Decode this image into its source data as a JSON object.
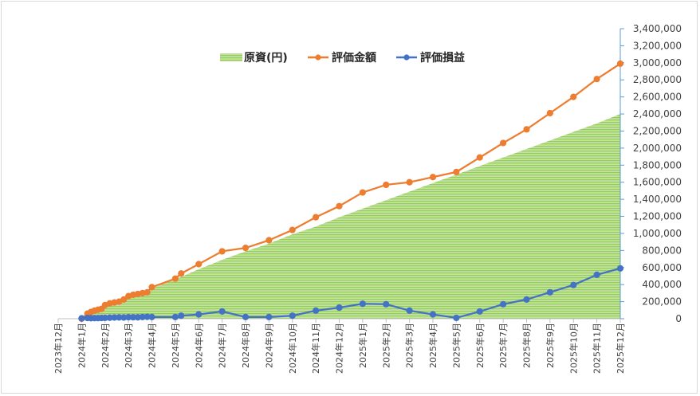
{
  "chart_data": {
    "type": "line+area",
    "title": "",
    "xlabel": "",
    "ylabel": "",
    "ylim": [
      0,
      3400000
    ],
    "ytick_step": 200000,
    "grid": false,
    "legend_position": "top-center",
    "y_ticks": [
      "0",
      "200,000",
      "400,000",
      "600,000",
      "800,000",
      "1,000,000",
      "1,200,000",
      "1,400,000",
      "1,600,000",
      "1,800,000",
      "2,000,000",
      "2,200,000",
      "2,400,000",
      "2,600,000",
      "2,800,000",
      "3,000,000",
      "3,200,000",
      "3,400,000"
    ],
    "x_tick_labels": [
      "2023年12月",
      "2024年1月",
      "2024年2月",
      "2024年3月",
      "2024年4月",
      "2024年5月",
      "2024年6月",
      "2024年7月",
      "2024年8月",
      "2024年9月",
      "2024年10月",
      "2024年11月",
      "2024年12月",
      "2025年1月",
      "2025年2月",
      "2025年3月",
      "2025年4月",
      "2025年5月",
      "2025年6月",
      "2025年7月",
      "2025年8月",
      "2025年9月",
      "2025年10月",
      "2025年11月",
      "2025年12月"
    ],
    "series": [
      {
        "name": "原資(円)",
        "kind": "area",
        "color": "#92d050",
        "points": [
          [
            1.0,
            0
          ],
          [
            1.25,
            50000
          ],
          [
            1.4,
            75000
          ],
          [
            1.55,
            95000
          ],
          [
            1.7,
            110000
          ],
          [
            1.85,
            125000
          ],
          [
            2.0,
            160000
          ],
          [
            2.2,
            180000
          ],
          [
            2.4,
            195000
          ],
          [
            2.6,
            210000
          ],
          [
            2.8,
            230000
          ],
          [
            3.0,
            255000
          ],
          [
            3.2,
            275000
          ],
          [
            3.4,
            290000
          ],
          [
            3.6,
            310000
          ],
          [
            3.8,
            330000
          ],
          [
            4.0,
            355000
          ],
          [
            5.0,
            460000
          ],
          [
            6.0,
            580000
          ],
          [
            7.0,
            690000
          ],
          [
            8.0,
            790000
          ],
          [
            9.0,
            880000
          ],
          [
            10.0,
            990000
          ],
          [
            11.0,
            1080000
          ],
          [
            12.0,
            1190000
          ],
          [
            13.0,
            1290000
          ],
          [
            14.0,
            1390000
          ],
          [
            15.0,
            1490000
          ],
          [
            16.0,
            1590000
          ],
          [
            17.0,
            1690000
          ],
          [
            18.0,
            1790000
          ],
          [
            19.0,
            1890000
          ],
          [
            20.0,
            1990000
          ],
          [
            21.0,
            2090000
          ],
          [
            22.0,
            2190000
          ],
          [
            23.0,
            2290000
          ],
          [
            24.0,
            2400000
          ]
        ]
      },
      {
        "name": "評価金額",
        "kind": "line",
        "color": "#ed7d31",
        "points": [
          [
            1.0,
            0
          ],
          [
            1.25,
            60000
          ],
          [
            1.4,
            80000
          ],
          [
            1.55,
            95000
          ],
          [
            1.7,
            105000
          ],
          [
            1.85,
            115000
          ],
          [
            2.0,
            160000
          ],
          [
            2.2,
            180000
          ],
          [
            2.4,
            190000
          ],
          [
            2.6,
            200000
          ],
          [
            2.8,
            225000
          ],
          [
            3.0,
            265000
          ],
          [
            3.2,
            280000
          ],
          [
            3.4,
            290000
          ],
          [
            3.6,
            300000
          ],
          [
            3.8,
            310000
          ],
          [
            4.0,
            370000
          ],
          [
            5.0,
            470000
          ],
          [
            5.25,
            530000
          ],
          [
            6.0,
            640000
          ],
          [
            7.0,
            790000
          ],
          [
            8.0,
            830000
          ],
          [
            9.0,
            920000
          ],
          [
            10.0,
            1040000
          ],
          [
            11.0,
            1190000
          ],
          [
            12.0,
            1320000
          ],
          [
            13.0,
            1480000
          ],
          [
            14.0,
            1570000
          ],
          [
            15.0,
            1600000
          ],
          [
            16.0,
            1660000
          ],
          [
            17.0,
            1720000
          ],
          [
            18.0,
            1890000
          ],
          [
            19.0,
            2060000
          ],
          [
            20.0,
            2220000
          ],
          [
            21.0,
            2410000
          ],
          [
            22.0,
            2600000
          ],
          [
            23.0,
            2810000
          ],
          [
            24.0,
            2990000
          ]
        ]
      },
      {
        "name": "評価損益",
        "kind": "line",
        "color": "#4472c4",
        "points": [
          [
            1.0,
            5000
          ],
          [
            1.25,
            8000
          ],
          [
            1.4,
            6000
          ],
          [
            1.55,
            7000
          ],
          [
            1.7,
            7000
          ],
          [
            1.85,
            8000
          ],
          [
            2.0,
            10000
          ],
          [
            2.2,
            12000
          ],
          [
            2.4,
            14000
          ],
          [
            2.6,
            15000
          ],
          [
            2.8,
            14000
          ],
          [
            3.0,
            18000
          ],
          [
            3.2,
            17000
          ],
          [
            3.4,
            16000
          ],
          [
            3.6,
            20000
          ],
          [
            3.8,
            22000
          ],
          [
            4.0,
            20000
          ],
          [
            5.0,
            20000
          ],
          [
            5.25,
            35000
          ],
          [
            6.0,
            50000
          ],
          [
            7.0,
            85000
          ],
          [
            8.0,
            20000
          ],
          [
            9.0,
            20000
          ],
          [
            10.0,
            35000
          ],
          [
            11.0,
            95000
          ],
          [
            12.0,
            130000
          ],
          [
            13.0,
            175000
          ],
          [
            14.0,
            170000
          ],
          [
            15.0,
            95000
          ],
          [
            16.0,
            50000
          ],
          [
            17.0,
            10000
          ],
          [
            18.0,
            85000
          ],
          [
            19.0,
            170000
          ],
          [
            20.0,
            225000
          ],
          [
            21.0,
            310000
          ],
          [
            22.0,
            395000
          ],
          [
            23.0,
            515000
          ],
          [
            24.0,
            590000
          ]
        ]
      }
    ]
  }
}
